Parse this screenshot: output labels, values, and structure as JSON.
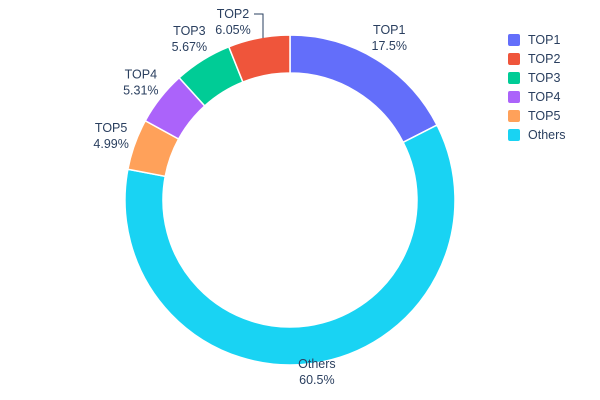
{
  "chart_data": {
    "type": "pie",
    "subtype": "donut",
    "title": "",
    "labels": [
      "TOP1",
      "TOP2",
      "TOP3",
      "TOP4",
      "TOP5",
      "Others"
    ],
    "values": [
      17.5,
      6.05,
      5.67,
      5.31,
      4.99,
      60.5
    ],
    "percent_labels": [
      "17.5%",
      "6.05%",
      "5.67%",
      "5.31%",
      "4.99%",
      "60.5%"
    ],
    "colors": [
      "#636efa",
      "#ef553b",
      "#00cc96",
      "#ab63fa",
      "#ffa15a",
      "#19d3f3"
    ],
    "hole": 0.77,
    "background": "#ffffff",
    "text_color": "#2a3f5f",
    "legend": {
      "position": "right",
      "entries": [
        "TOP1",
        "TOP2",
        "TOP3",
        "TOP4",
        "TOP5",
        "Others"
      ]
    }
  }
}
